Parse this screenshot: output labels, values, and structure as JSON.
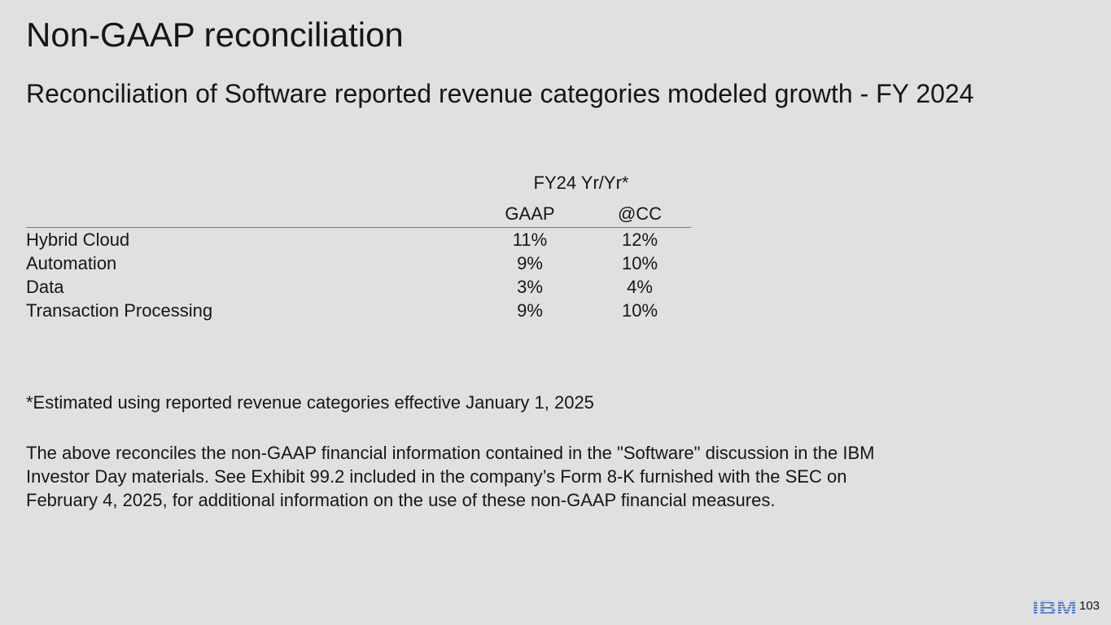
{
  "slide": {
    "title": "Non-GAAP reconciliation",
    "subtitle": "Reconciliation of Software reported revenue categories modeled growth - FY 2024"
  },
  "table": {
    "group_header": "FY24 Yr/Yr*",
    "columns": [
      "GAAP",
      "@CC"
    ],
    "rows": [
      {
        "label": "Hybrid Cloud",
        "gaap": "11%",
        "cc": "12%"
      },
      {
        "label": "Automation",
        "gaap": "9%",
        "cc": "10%"
      },
      {
        "label": "Data",
        "gaap": "3%",
        "cc": "4%"
      },
      {
        "label": "Transaction Processing",
        "gaap": "9%",
        "cc": "10%"
      }
    ]
  },
  "footnote": "*Estimated using reported revenue categories effective January 1, 2025",
  "disclaimer": {
    "line1": "The above reconciles the non-GAAP financial information contained in the \"Software\" discussion in the IBM",
    "line2": "Investor Day materials. See Exhibit 99.2 included in the company’s Form 8-K furnished with the SEC on",
    "line3": "February 4, 2025, for additional information on the use of these non-GAAP financial measures."
  },
  "footer": {
    "logo_text": "IBM",
    "page_number": "103",
    "brand_color": "#3d6ec9"
  }
}
